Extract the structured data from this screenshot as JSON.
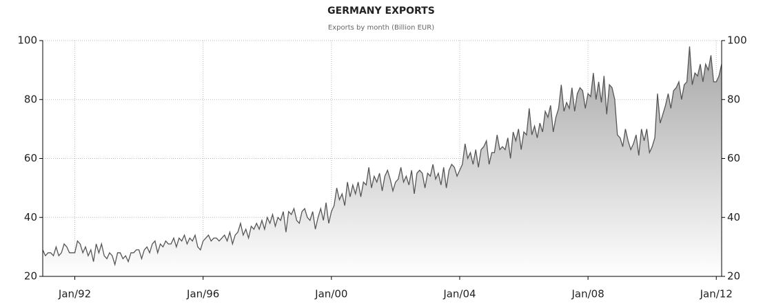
{
  "chart_data": {
    "type": "area",
    "title": "GERMANY EXPORTS",
    "subtitle": "Exports by month (Billion EUR)",
    "x": [
      "1991-01",
      "1991-02",
      "1991-03",
      "1991-04",
      "1991-05",
      "1991-06",
      "1991-07",
      "1991-08",
      "1991-09",
      "1991-10",
      "1991-11",
      "1991-12",
      "1992-01",
      "1992-02",
      "1992-03",
      "1992-04",
      "1992-05",
      "1992-06",
      "1992-07",
      "1992-08",
      "1992-09",
      "1992-10",
      "1992-11",
      "1992-12",
      "1993-01",
      "1993-02",
      "1993-03",
      "1993-04",
      "1993-05",
      "1993-06",
      "1993-07",
      "1993-08",
      "1993-09",
      "1993-10",
      "1993-11",
      "1993-12",
      "1994-01",
      "1994-02",
      "1994-03",
      "1994-04",
      "1994-05",
      "1994-06",
      "1994-07",
      "1994-08",
      "1994-09",
      "1994-10",
      "1994-11",
      "1994-12",
      "1995-01",
      "1995-02",
      "1995-03",
      "1995-04",
      "1995-05",
      "1995-06",
      "1995-07",
      "1995-08",
      "1995-09",
      "1995-10",
      "1995-11",
      "1995-12",
      "1996-01",
      "1996-02",
      "1996-03",
      "1996-04",
      "1996-05",
      "1996-06",
      "1996-07",
      "1996-08",
      "1996-09",
      "1996-10",
      "1996-11",
      "1996-12",
      "1997-01",
      "1997-02",
      "1997-03",
      "1997-04",
      "1997-05",
      "1997-06",
      "1997-07",
      "1997-08",
      "1997-09",
      "1997-10",
      "1997-11",
      "1997-12",
      "1998-01",
      "1998-02",
      "1998-03",
      "1998-04",
      "1998-05",
      "1998-06",
      "1998-07",
      "1998-08",
      "1998-09",
      "1998-10",
      "1998-11",
      "1998-12",
      "1999-01",
      "1999-02",
      "1999-03",
      "1999-04",
      "1999-05",
      "1999-06",
      "1999-07",
      "1999-08",
      "1999-09",
      "1999-10",
      "1999-11",
      "1999-12",
      "2000-01",
      "2000-02",
      "2000-03",
      "2000-04",
      "2000-05",
      "2000-06",
      "2000-07",
      "2000-08",
      "2000-09",
      "2000-10",
      "2000-11",
      "2000-12",
      "2001-01",
      "2001-02",
      "2001-03",
      "2001-04",
      "2001-05",
      "2001-06",
      "2001-07",
      "2001-08",
      "2001-09",
      "2001-10",
      "2001-11",
      "2001-12",
      "2002-01",
      "2002-02",
      "2002-03",
      "2002-04",
      "2002-05",
      "2002-06",
      "2002-07",
      "2002-08",
      "2002-09",
      "2002-10",
      "2002-11",
      "2002-12",
      "2003-01",
      "2003-02",
      "2003-03",
      "2003-04",
      "2003-05",
      "2003-06",
      "2003-07",
      "2003-08",
      "2003-09",
      "2003-10",
      "2003-11",
      "2003-12",
      "2004-01",
      "2004-02",
      "2004-03",
      "2004-04",
      "2004-05",
      "2004-06",
      "2004-07",
      "2004-08",
      "2004-09",
      "2004-10",
      "2004-11",
      "2004-12",
      "2005-01",
      "2005-02",
      "2005-03",
      "2005-04",
      "2005-05",
      "2005-06",
      "2005-07",
      "2005-08",
      "2005-09",
      "2005-10",
      "2005-11",
      "2005-12",
      "2006-01",
      "2006-02",
      "2006-03",
      "2006-04",
      "2006-05",
      "2006-06",
      "2006-07",
      "2006-08",
      "2006-09",
      "2006-10",
      "2006-11",
      "2006-12",
      "2007-01",
      "2007-02",
      "2007-03",
      "2007-04",
      "2007-05",
      "2007-06",
      "2007-07",
      "2007-08",
      "2007-09",
      "2007-10",
      "2007-11",
      "2007-12",
      "2008-01",
      "2008-02",
      "2008-03",
      "2008-04",
      "2008-05",
      "2008-06",
      "2008-07",
      "2008-08",
      "2008-09",
      "2008-10",
      "2008-11",
      "2008-12",
      "2009-01",
      "2009-02",
      "2009-03",
      "2009-04",
      "2009-05",
      "2009-06",
      "2009-07",
      "2009-08",
      "2009-09",
      "2009-10",
      "2009-11",
      "2009-12",
      "2010-01",
      "2010-02",
      "2010-03",
      "2010-04",
      "2010-05",
      "2010-06",
      "2010-07",
      "2010-08",
      "2010-09",
      "2010-10",
      "2010-11",
      "2010-12",
      "2011-01",
      "2011-02",
      "2011-03",
      "2011-04",
      "2011-05",
      "2011-06",
      "2011-07",
      "2011-08",
      "2011-09",
      "2011-10",
      "2011-11",
      "2011-12",
      "2012-01",
      "2012-02",
      "2012-03"
    ],
    "values": [
      29,
      27,
      28,
      28,
      27,
      30,
      27,
      28,
      31,
      30,
      28,
      28,
      28,
      32,
      31,
      28,
      30,
      27,
      29,
      25,
      31,
      28,
      31,
      27,
      26,
      28,
      27,
      24,
      28,
      28,
      26,
      27,
      25,
      28,
      28,
      29,
      29,
      26,
      29,
      30,
      28,
      31,
      32,
      28,
      31,
      30,
      32,
      31,
      31,
      33,
      30,
      33,
      32,
      34,
      31,
      33,
      32,
      34,
      30,
      29,
      32,
      33,
      34,
      32,
      33,
      33,
      32,
      33,
      34,
      32,
      35,
      31,
      34,
      35,
      38,
      34,
      36,
      33,
      37,
      36,
      38,
      36,
      39,
      36,
      40,
      38,
      41,
      37,
      40,
      39,
      42,
      35,
      42,
      41,
      43,
      39,
      38,
      42,
      43,
      40,
      39,
      42,
      36,
      40,
      43,
      39,
      45,
      38,
      42,
      44,
      50,
      46,
      48,
      44,
      52,
      47,
      51,
      48,
      52,
      47,
      52,
      51,
      57,
      50,
      54,
      52,
      55,
      49,
      54,
      56,
      53,
      49,
      52,
      53,
      57,
      52,
      54,
      51,
      56,
      48,
      55,
      56,
      55,
      50,
      55,
      54,
      58,
      53,
      55,
      51,
      57,
      50,
      56,
      58,
      57,
      54,
      56,
      58,
      65,
      60,
      62,
      58,
      63,
      57,
      63,
      64,
      66,
      58,
      62,
      62,
      68,
      63,
      64,
      63,
      67,
      60,
      69,
      66,
      70,
      63,
      69,
      68,
      77,
      68,
      71,
      67,
      72,
      69,
      76,
      74,
      78,
      69,
      74,
      77,
      85,
      76,
      79,
      77,
      84,
      76,
      82,
      84,
      83,
      77,
      82,
      81,
      89,
      80,
      86,
      79,
      88,
      75,
      85,
      84,
      80,
      68,
      67,
      64,
      70,
      66,
      63,
      65,
      68,
      61,
      70,
      66,
      70,
      62,
      64,
      67,
      82,
      72,
      75,
      78,
      82,
      77,
      83,
      84,
      86,
      80,
      85,
      86,
      98,
      85,
      89,
      88,
      92,
      86,
      92,
      90,
      95,
      86,
      86,
      88,
      92
    ],
    "line_color": "#555555",
    "fill_color": "#a6a6a6",
    "xlim": [
      "1991-01",
      "2012-03"
    ],
    "xticks": [
      {
        "value": "1992-01",
        "label": "Jan/92"
      },
      {
        "value": "1996-01",
        "label": "Jan/96"
      },
      {
        "value": "2000-01",
        "label": "Jan/00"
      },
      {
        "value": "2004-01",
        "label": "Jan/04"
      },
      {
        "value": "2008-01",
        "label": "Jan/08"
      },
      {
        "value": "2012-01",
        "label": "Jan/12"
      }
    ],
    "ylim": [
      20,
      100
    ],
    "yticks": [
      20,
      40,
      60,
      80,
      100
    ],
    "grid": true
  }
}
